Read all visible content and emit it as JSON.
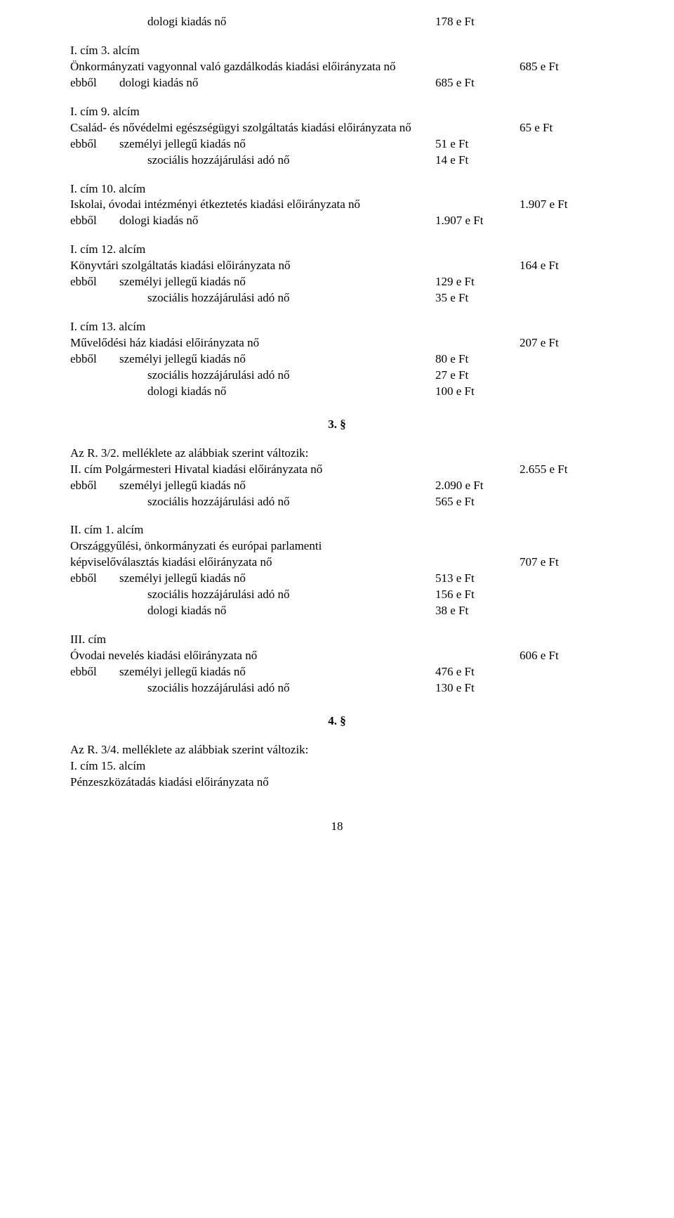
{
  "top": {
    "indent_label": "dologi kiadás nő",
    "indent_amount": "178 e Ft"
  },
  "s1": {
    "head": "I. cím 3. alcím",
    "title": "Önkormányzati vagyonnal való gazdálkodás kiadási előirányzata nő",
    "title_amt": "685 e Ft",
    "r1_pre": "ebből",
    "r1_lbl": "dologi kiadás nő",
    "r1_amt": "685 e Ft"
  },
  "s2": {
    "head": "I. cím 9. alcím",
    "title": "Család- és nővédelmi egészségügyi szolgáltatás kiadási előirányzata nő",
    "title_amt": "65 e Ft",
    "r1_pre": "ebből",
    "r1_lbl": "személyi jellegű kiadás nő",
    "r1_amt": "51 e Ft",
    "r2_lbl": "szociális hozzájárulási adó nő",
    "r2_amt": "14 e Ft"
  },
  "s3": {
    "head": "I. cím 10. alcím",
    "title": "Iskolai, óvodai intézményi étkeztetés kiadási előirányzata nő",
    "title_amt": "1.907 e Ft",
    "r1_pre": "ebből",
    "r1_lbl": "dologi kiadás nő",
    "r1_amt": "1.907 e Ft"
  },
  "s4": {
    "head": "I. cím 12. alcím",
    "title": "Könyvtári szolgáltatás kiadási előirányzata nő",
    "title_amt": "164 e Ft",
    "r1_pre": "ebből",
    "r1_lbl": "személyi jellegű kiadás nő",
    "r1_amt": "129 e Ft",
    "r2_lbl": "szociális hozzájárulási adó nő",
    "r2_amt": "35 e Ft"
  },
  "s5": {
    "head": "I. cím 13. alcím",
    "title": "Művelődési ház kiadási előirányzata nő",
    "title_amt": "207 e Ft",
    "r1_pre": "ebből",
    "r1_lbl": "személyi jellegű kiadás nő",
    "r1_amt": "80 e Ft",
    "r2_lbl": "szociális hozzájárulási adó nő",
    "r2_amt": "27 e Ft",
    "r3_lbl": "dologi kiadás nő",
    "r3_amt": "100 e Ft"
  },
  "sec3": "3. §",
  "s6": {
    "head": "Az R. 3/2. melléklete az alábbiak szerint változik:",
    "title": "II. cím Polgármesteri Hivatal kiadási előirányzata nő",
    "title_amt": "2.655 e Ft",
    "r1_pre": "ebből",
    "r1_lbl": "személyi jellegű kiadás nő",
    "r1_amt": "2.090 e Ft",
    "r2_lbl": "szociális hozzájárulási adó nő",
    "r2_amt": "565 e Ft"
  },
  "s7": {
    "head": "II. cím 1. alcím",
    "title1": "Országgyűlési, önkormányzati és európai parlamenti",
    "title2": "képviselőválasztás kiadási előirányzata nő",
    "title_amt": "707 e Ft",
    "r1_pre": "ebből",
    "r1_lbl": "személyi jellegű kiadás nő",
    "r1_amt": "513 e Ft",
    "r2_lbl": "szociális hozzájárulási adó nő",
    "r2_amt": "156 e Ft",
    "r3_lbl": "dologi kiadás nő",
    "r3_amt": "38 e Ft"
  },
  "s8": {
    "head": "III. cím",
    "title": "Óvodai nevelés kiadási előirányzata nő",
    "title_amt": "606 e Ft",
    "r1_pre": "ebből",
    "r1_lbl": "személyi jellegű kiadás nő",
    "r1_amt": "476 e Ft",
    "r2_lbl": "szociális hozzájárulási adó nő",
    "r2_amt": "130 e Ft"
  },
  "sec4": "4. §",
  "s9": {
    "head": "Az R. 3/4. melléklete az alábbiak szerint változik:",
    "line2": "I. cím 15. alcím",
    "line3": "Pénzeszközátadás kiadási előirányzata nő"
  },
  "page": "18"
}
